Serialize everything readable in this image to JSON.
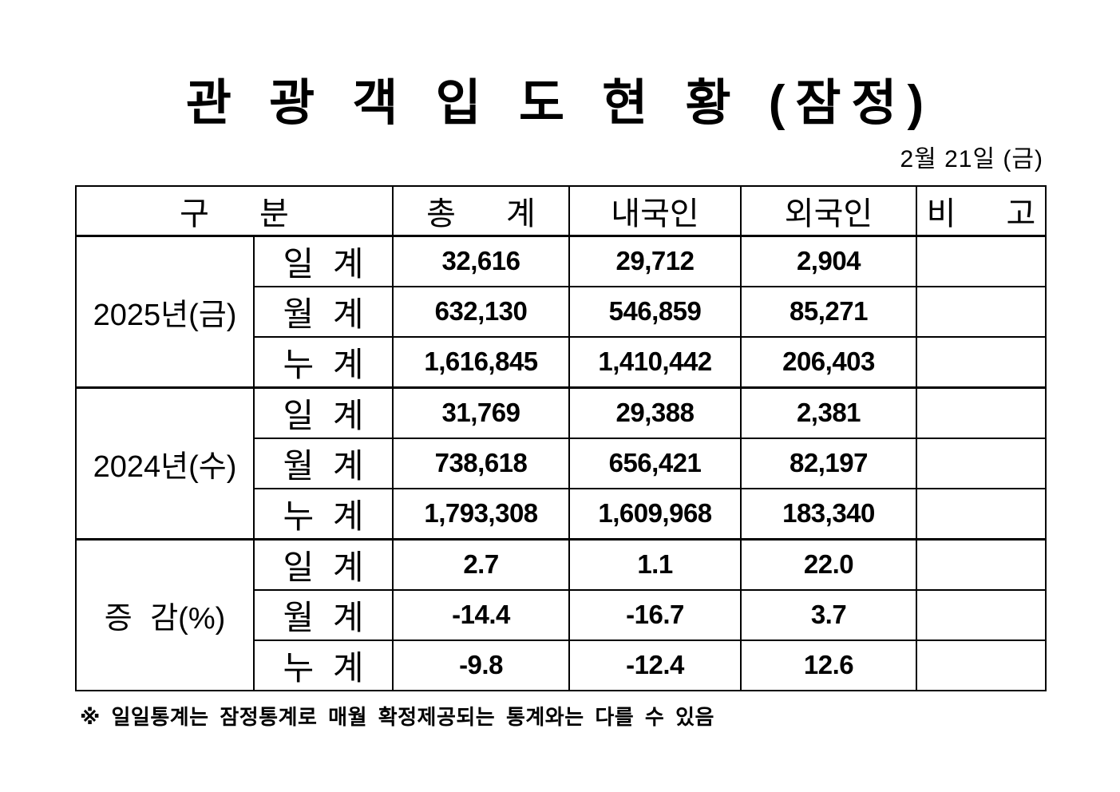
{
  "title": "관 광 객 입 도 현 황 (잠정)",
  "date": "2월 21일 (금)",
  "footnote": "※ 일일통계는 잠정통계로 매월 확정제공되는 통계와는 다를 수 있음",
  "table": {
    "headers": {
      "category": "구 분",
      "total": "총 계",
      "domestic": "내국인",
      "foreign": "외국인",
      "remark": "비 고"
    },
    "sections": [
      {
        "label": "2025년(금)",
        "rows": [
          {
            "period": "일 계",
            "total": "32,616",
            "domestic": "29,712",
            "foreign": "2,904",
            "remark": ""
          },
          {
            "period": "월 계",
            "total": "632,130",
            "domestic": "546,859",
            "foreign": "85,271",
            "remark": ""
          },
          {
            "period": "누 계",
            "total": "1,616,845",
            "domestic": "1,410,442",
            "foreign": "206,403",
            "remark": ""
          }
        ]
      },
      {
        "label": "2024년(수)",
        "rows": [
          {
            "period": "일 계",
            "total": "31,769",
            "domestic": "29,388",
            "foreign": "2,381",
            "remark": ""
          },
          {
            "period": "월 계",
            "total": "738,618",
            "domestic": "656,421",
            "foreign": "82,197",
            "remark": ""
          },
          {
            "period": "누 계",
            "total": "1,793,308",
            "domestic": "1,609,968",
            "foreign": "183,340",
            "remark": ""
          }
        ]
      },
      {
        "label": "증 감(%)",
        "rows": [
          {
            "period": "일 계",
            "total": "2.7",
            "domestic": "1.1",
            "foreign": "22.0",
            "remark": ""
          },
          {
            "period": "월 계",
            "total": "-14.4",
            "domestic": "-16.7",
            "foreign": "3.7",
            "remark": ""
          },
          {
            "period": "누 계",
            "total": "-9.8",
            "domestic": "-12.4",
            "foreign": "12.6",
            "remark": ""
          }
        ]
      }
    ]
  }
}
